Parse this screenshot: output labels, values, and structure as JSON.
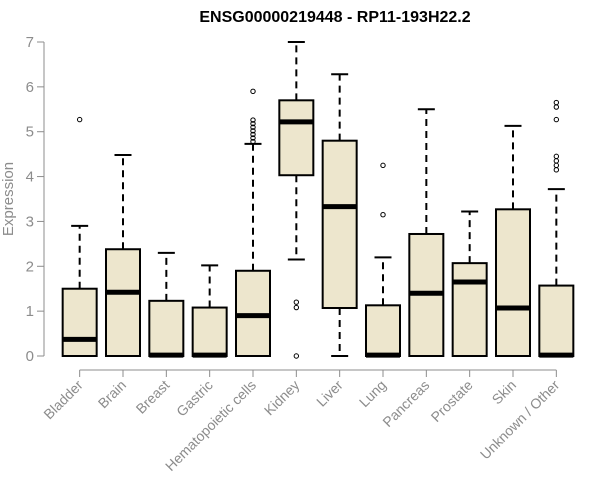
{
  "chart_data": {
    "type": "boxplot",
    "title": "ENSG00000219448 - RP11-193H22.2",
    "xlabel": "",
    "ylabel": "Expression",
    "ylim": [
      0,
      7
    ],
    "yticks": [
      0,
      1,
      2,
      3,
      4,
      5,
      6,
      7
    ],
    "grid": false,
    "legend": "none",
    "box_fill": "#ede6cd",
    "box_stroke": "#000000",
    "categories": [
      "Bladder",
      "Brain",
      "Breast",
      "Gastric",
      "Hematopoietic cells",
      "Kidney",
      "Liver",
      "Lung",
      "Pancreas",
      "Prostate",
      "Skin",
      "Unknown / Other"
    ],
    "boxes": [
      {
        "category": "Bladder",
        "min": 0,
        "q1": 0,
        "median": 0.37,
        "q3": 1.5,
        "max": 2.9,
        "outliers": [
          5.27
        ]
      },
      {
        "category": "Brain",
        "min": 0,
        "q1": 0,
        "median": 1.42,
        "q3": 2.38,
        "max": 4.48,
        "outliers": []
      },
      {
        "category": "Breast",
        "min": 0,
        "q1": 0,
        "median": 0.02,
        "q3": 1.23,
        "max": 2.3,
        "outliers": []
      },
      {
        "category": "Gastric",
        "min": 0,
        "q1": 0,
        "median": 0.02,
        "q3": 1.08,
        "max": 2.02,
        "outliers": []
      },
      {
        "category": "Hematopoietic cells",
        "min": 0,
        "q1": 0,
        "median": 0.9,
        "q3": 1.9,
        "max": 4.73,
        "outliers": [
          4.78,
          4.86,
          4.94,
          5.02,
          5.1,
          5.18,
          5.26,
          5.9
        ]
      },
      {
        "category": "Kidney",
        "min": 2.15,
        "q1": 4.03,
        "median": 5.22,
        "q3": 5.7,
        "max": 7.0,
        "outliers": [
          1.2,
          1.08,
          0.0
        ]
      },
      {
        "category": "Liver",
        "min": 0,
        "q1": 1.07,
        "median": 3.33,
        "q3": 4.8,
        "max": 6.28,
        "outliers": []
      },
      {
        "category": "Lung",
        "min": 0,
        "q1": 0,
        "median": 0.02,
        "q3": 1.13,
        "max": 2.2,
        "outliers": [
          3.15,
          4.25
        ]
      },
      {
        "category": "Pancreas",
        "min": 0,
        "q1": 0,
        "median": 1.4,
        "q3": 2.72,
        "max": 5.5,
        "outliers": []
      },
      {
        "category": "Prostate",
        "min": 0,
        "q1": 0,
        "median": 1.65,
        "q3": 2.07,
        "max": 3.22,
        "outliers": []
      },
      {
        "category": "Skin",
        "min": 0,
        "q1": 0,
        "median": 1.07,
        "q3": 3.27,
        "max": 5.13,
        "outliers": []
      },
      {
        "category": "Unknown / Other",
        "min": 0,
        "q1": 0,
        "median": 0.02,
        "q3": 1.57,
        "max": 3.72,
        "outliers": [
          4.15,
          4.25,
          4.35,
          4.45,
          5.27,
          5.55,
          5.65
        ]
      }
    ]
  }
}
